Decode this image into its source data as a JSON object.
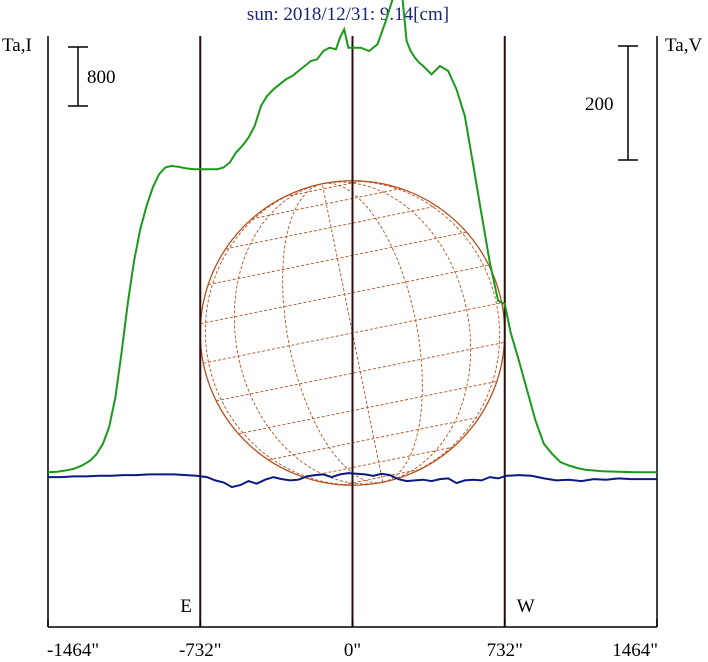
{
  "chart_data": {
    "type": "line",
    "title": "sun: 2018/12/31: 9.14[cm]",
    "ylabel_left": "Ta,I",
    "ylabel_right": "Ta,V",
    "scale_left_label": "800",
    "scale_right_label": "200",
    "xlim": [
      -1464,
      1464
    ],
    "x_ticks": [
      -1464,
      -732,
      0,
      732,
      1464
    ],
    "x_tick_labels": [
      "-1464\"",
      "-732\"",
      "0\"",
      "732\"",
      "1464\""
    ],
    "limb_x": [
      -732,
      732
    ],
    "limb_labels": {
      "east": "E",
      "west": "W"
    },
    "ylim_I": [
      -900,
      2650
    ],
    "ylim_V": [
      -225,
      662
    ],
    "colors": {
      "stokes_I": "#1a9a1a",
      "stokes_V": "#0a1a80",
      "disk": "#b5501e",
      "frame": "#000000",
      "limbs": "#2b0d0d",
      "title": "#1a237e"
    },
    "series": [
      {
        "key": "I",
        "x": [
          -1464,
          -1420,
          -1380,
          -1340,
          -1300,
          -1260,
          -1230,
          -1200,
          -1170,
          -1140,
          -1110,
          -1080,
          -1050,
          -1020,
          -990,
          -960,
          -930,
          -900,
          -870,
          -840,
          -800,
          -760,
          -732,
          -710,
          -690,
          -670,
          -650,
          -620,
          -590,
          -560,
          -530,
          -500,
          -470,
          -440,
          -410,
          -380,
          -350,
          -320,
          -290,
          -260,
          -230,
          -200,
          -170,
          -140,
          -110,
          -80,
          -60,
          -40,
          -20,
          0,
          40,
          80,
          120,
          160,
          200,
          220,
          240,
          260,
          280,
          300,
          320,
          340,
          380,
          420,
          460,
          500,
          540,
          580,
          620,
          660,
          700,
          732,
          760,
          800,
          840,
          880,
          920,
          960,
          1000,
          1040,
          1080,
          1120,
          1160,
          1200,
          1240,
          1280,
          1320,
          1360,
          1400,
          1440,
          1464
        ],
        "values": [
          30,
          33,
          40,
          50,
          70,
          100,
          140,
          200,
          300,
          480,
          750,
          1050,
          1300,
          1490,
          1630,
          1740,
          1820,
          1860,
          1870,
          1865,
          1855,
          1850,
          1850,
          1850,
          1850,
          1850,
          1850,
          1860,
          1890,
          1950,
          1990,
          2040,
          2110,
          2230,
          2290,
          2330,
          2360,
          2390,
          2410,
          2440,
          2470,
          2500,
          2510,
          2560,
          2580,
          2570,
          2640,
          2690,
          2580,
          2580,
          2580,
          2560,
          2600,
          2740,
          2900,
          2960,
          2880,
          2620,
          2560,
          2520,
          2490,
          2470,
          2420,
          2470,
          2440,
          2330,
          2170,
          1880,
          1580,
          1290,
          1060,
          1040,
          870,
          700,
          520,
          340,
          200,
          140,
          90,
          70,
          55,
          45,
          40,
          36,
          34,
          32,
          31,
          30,
          30,
          30,
          30
        ]
      },
      {
        "key": "V",
        "x": [
          -1464,
          -1400,
          -1340,
          -1280,
          -1220,
          -1160,
          -1100,
          -1040,
          -980,
          -920,
          -860,
          -800,
          -750,
          -700,
          -660,
          -620,
          -580,
          -540,
          -500,
          -460,
          -420,
          -380,
          -340,
          -300,
          -260,
          -220,
          -180,
          -140,
          -100,
          -60,
          -20,
          20,
          60,
          100,
          140,
          180,
          220,
          260,
          300,
          340,
          380,
          420,
          460,
          500,
          540,
          580,
          620,
          660,
          700,
          740,
          800,
          860,
          920,
          980,
          1040,
          1100,
          1160,
          1220,
          1280,
          1340,
          1400,
          1464
        ],
        "values": [
          0,
          0,
          1,
          1,
          2,
          2,
          3,
          3,
          4,
          4,
          4,
          3,
          2,
          0,
          -5,
          -8,
          -15,
          -12,
          -6,
          -10,
          -4,
          0,
          -3,
          -5,
          -4,
          1,
          3,
          4,
          0,
          4,
          6,
          5,
          4,
          2,
          5,
          3,
          -3,
          -6,
          -5,
          -4,
          -6,
          -3,
          -2,
          -9,
          -5,
          -4,
          -5,
          0,
          -2,
          2,
          3,
          2,
          -2,
          -5,
          -4,
          -6,
          -3,
          -4,
          -2,
          -3,
          -3,
          -3
        ]
      }
    ]
  }
}
